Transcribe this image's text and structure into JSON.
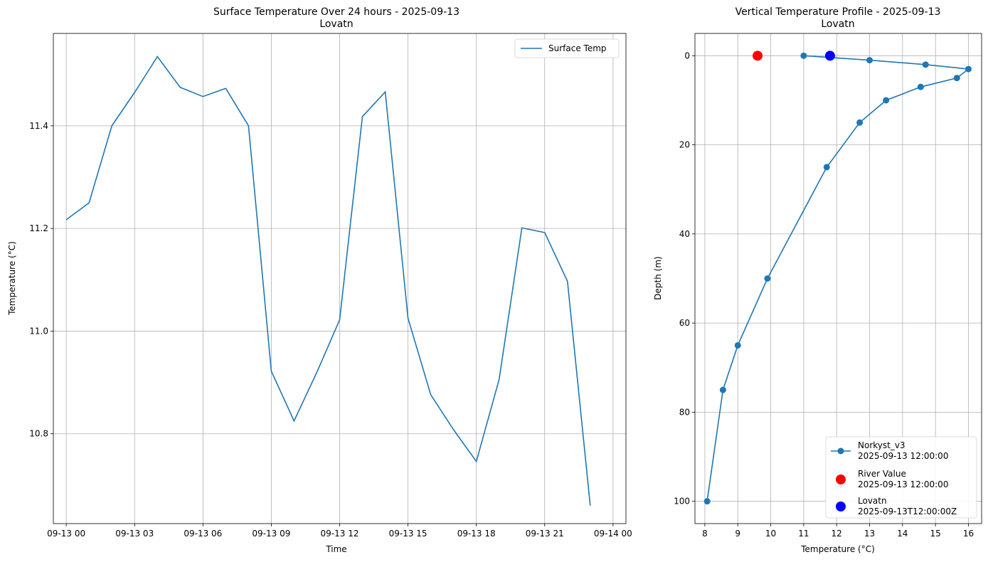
{
  "chart_data": [
    {
      "type": "line",
      "title": "Surface Temperature Over 24 hours - 2025-09-13",
      "subtitle": "Lovatn",
      "xlabel": "Time",
      "ylabel": "Temperature (°C)",
      "grid": true,
      "legend_position": "top-right",
      "x_ticks": [
        "09-13 00",
        "09-13 03",
        "09-13 06",
        "09-13 09",
        "09-13 12",
        "09-13 15",
        "09-13 18",
        "09-13 21",
        "09-14 00"
      ],
      "y_ticks": [
        10.8,
        11.0,
        11.2,
        11.4
      ],
      "xlim": [
        "2025-09-12 23:26",
        "2025-09-14 00:34"
      ],
      "ylim": [
        10.625,
        11.58
      ],
      "series": [
        {
          "name": "Surface Temp",
          "color": "#1f77b4",
          "x": [
            "2025-09-13 00:00",
            "2025-09-13 01:00",
            "2025-09-13 02:00",
            "2025-09-13 03:00",
            "2025-09-13 04:00",
            "2025-09-13 05:00",
            "2025-09-13 06:00",
            "2025-09-13 07:00",
            "2025-09-13 08:00",
            "2025-09-13 09:00",
            "2025-09-13 10:00",
            "2025-09-13 11:00",
            "2025-09-13 12:00",
            "2025-09-13 13:00",
            "2025-09-13 14:00",
            "2025-09-13 15:00",
            "2025-09-13 16:00",
            "2025-09-13 17:00",
            "2025-09-13 18:00",
            "2025-09-13 19:00",
            "2025-09-13 20:00",
            "2025-09-13 21:00",
            "2025-09-13 22:00",
            "2025-09-13 23:00"
          ],
          "y": [
            11.217,
            11.25,
            11.4,
            11.465,
            11.535,
            11.475,
            11.457,
            11.473,
            11.4,
            10.922,
            10.825,
            10.92,
            11.022,
            11.418,
            11.466,
            11.025,
            10.876,
            10.808,
            10.746,
            10.906,
            11.201,
            11.192,
            11.097,
            10.66
          ]
        }
      ]
    },
    {
      "type": "line",
      "title": "Vertical Temperature Profile - 2025-09-13",
      "subtitle": "Lovatn",
      "xlabel": "Temperature (°C)",
      "ylabel": "Depth (m)",
      "grid": true,
      "legend_position": "bottom-right",
      "y_inverted": true,
      "x_ticks": [
        8,
        9,
        10,
        11,
        12,
        13,
        14,
        15,
        16
      ],
      "y_ticks": [
        0,
        20,
        40,
        60,
        80,
        100
      ],
      "xlim": [
        7.7,
        16.4
      ],
      "ylim": [
        105,
        -5
      ],
      "series": [
        {
          "name": "Norkyst_v3\n2025-09-13 12:00:00",
          "color": "#1f77b4",
          "marker": "circle",
          "x": [
            11.0,
            13.0,
            14.7,
            16.0,
            15.65,
            14.55,
            13.5,
            12.7,
            11.7,
            9.9,
            9.0,
            8.55,
            8.07
          ],
          "y": [
            0,
            1,
            2,
            3,
            5,
            7,
            10,
            15,
            25,
            50,
            65,
            75,
            100
          ]
        },
        {
          "name": "River Value\n2025-09-13 12:00:00",
          "color": "#ff0000",
          "marker": "circle-large",
          "x": [
            9.6
          ],
          "y": [
            0
          ]
        },
        {
          "name": "Lovatn\n2025-09-13T12:00:00Z",
          "color": "#0000ff",
          "marker": "circle-large",
          "x": [
            11.8
          ],
          "y": [
            0
          ]
        }
      ]
    }
  ]
}
